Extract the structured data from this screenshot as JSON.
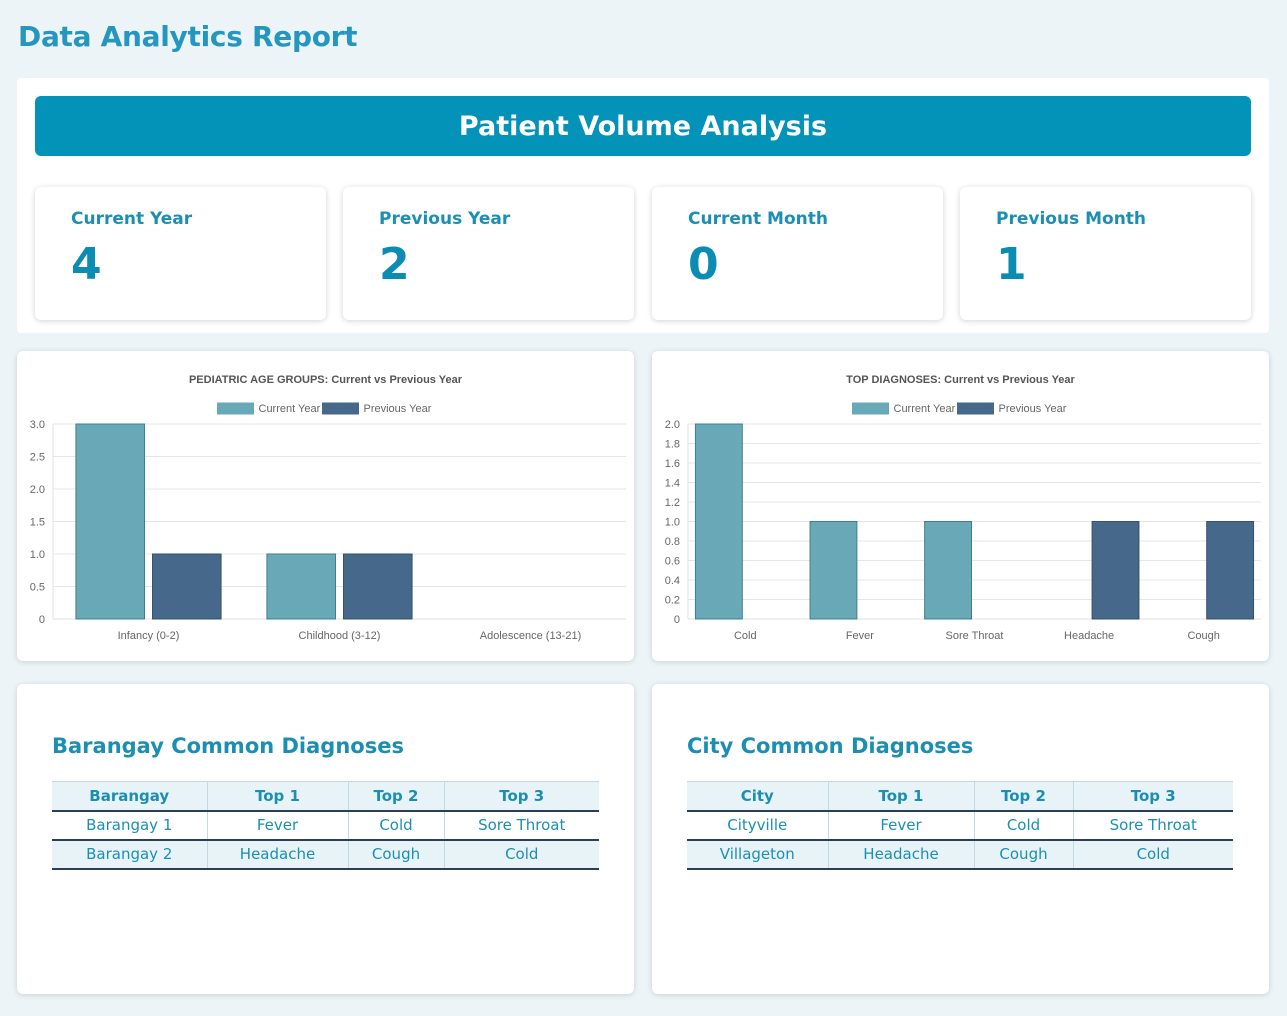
{
  "page": {
    "title": "Data Analytics Report"
  },
  "volume": {
    "header": "Patient Volume Analysis",
    "stats": [
      {
        "label": "Current Year",
        "value": "4"
      },
      {
        "label": "Previous Year",
        "value": "2"
      },
      {
        "label": "Current Month",
        "value": "0"
      },
      {
        "label": "Previous Month",
        "value": "1"
      }
    ]
  },
  "chart_data": [
    {
      "type": "bar",
      "title": "PEDIATRIC AGE GROUPS: Current vs Previous Year",
      "categories": [
        "Infancy (0-2)",
        "Childhood (3-12)",
        "Adolescence (13-21)"
      ],
      "series": [
        {
          "name": "Current Year",
          "values": [
            3,
            1,
            0
          ],
          "color": "#69a8b7"
        },
        {
          "name": "Previous Year",
          "values": [
            1,
            1,
            0
          ],
          "color": "#46688a"
        }
      ],
      "ylim": [
        0,
        3
      ],
      "yticks": [
        "0",
        "0.5",
        "1.0",
        "1.5",
        "2.0",
        "2.5",
        "3.0"
      ],
      "legend": "top",
      "grid": true
    },
    {
      "type": "bar",
      "title": "TOP DIAGNOSES: Current vs Previous Year",
      "categories": [
        "Cold",
        "Fever",
        "Sore Throat",
        "Headache",
        "Cough"
      ],
      "series": [
        {
          "name": "Current Year",
          "values": [
            2,
            1,
            1,
            0,
            0
          ],
          "color": "#69a8b7"
        },
        {
          "name": "Previous Year",
          "values": [
            0,
            0,
            0,
            1,
            1
          ],
          "color": "#46688a"
        }
      ],
      "ylim": [
        0,
        2
      ],
      "yticks": [
        "0",
        "0.2",
        "0.4",
        "0.6",
        "0.8",
        "1.0",
        "1.2",
        "1.4",
        "1.6",
        "1.8",
        "2.0"
      ],
      "legend": "top",
      "grid": true
    }
  ],
  "barangay": {
    "title": "Barangay Common Diagnoses",
    "headers": [
      "Barangay",
      "Top 1",
      "Top 2",
      "Top 3"
    ],
    "rows": [
      [
        "Barangay 1",
        "Fever",
        "Cold",
        "Sore Throat"
      ],
      [
        "Barangay 2",
        "Headache",
        "Cough",
        "Cold"
      ]
    ]
  },
  "city": {
    "title": "City Common Diagnoses",
    "headers": [
      "City",
      "Top 1",
      "Top 2",
      "Top 3"
    ],
    "rows": [
      [
        "Cityville",
        "Fever",
        "Cold",
        "Sore Throat"
      ],
      [
        "Villageton",
        "Headache",
        "Cough",
        "Cold"
      ]
    ]
  }
}
